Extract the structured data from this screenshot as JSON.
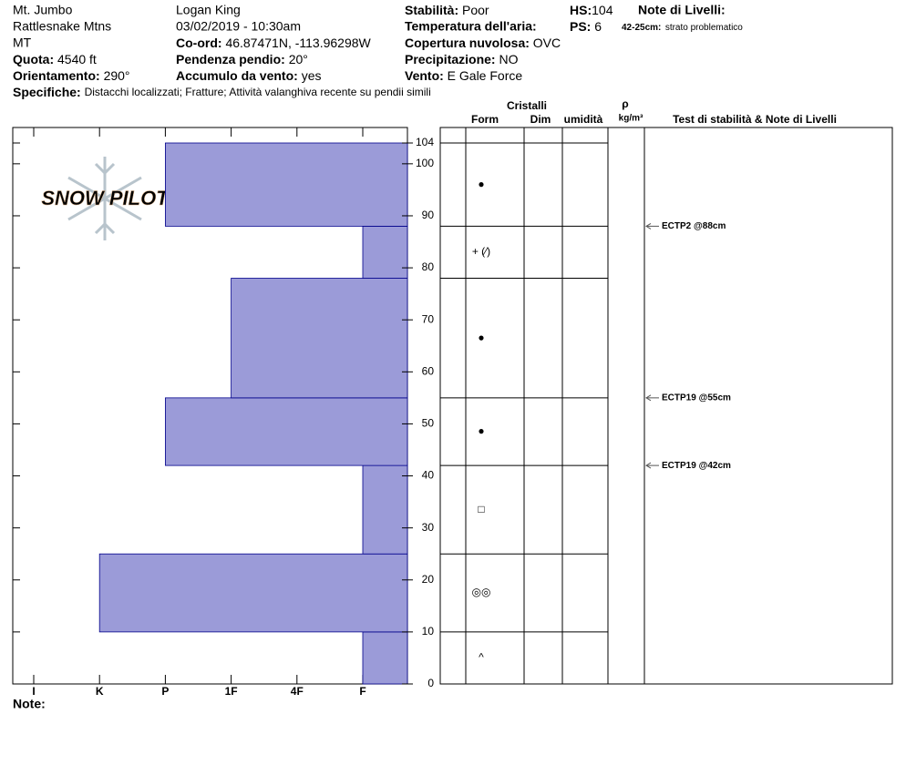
{
  "header": {
    "location": "Mt. Jumbo",
    "range": "Rattlesnake Mtns",
    "state": "MT",
    "elevation": {
      "label": "Quota:",
      "value": "4540 ft"
    },
    "aspect": {
      "label": "Orientamento:",
      "value": "290°"
    },
    "observer": "Logan King",
    "datetime": "03/02/2019 - 10:30am",
    "coord": {
      "label": "Co-ord:",
      "value": "46.87471N, -113.96298W"
    },
    "slope": {
      "label": "Pendenza pendio:",
      "value": "20°"
    },
    "wind_loading": {
      "label": "Accumulo da vento:",
      "value": "yes"
    },
    "stability": {
      "label": "Stabilità:",
      "value": "Poor"
    },
    "air_temp": {
      "label": "Temperatura dell'aria:"
    },
    "sky": {
      "label": "Copertura nuvolosa:",
      "value": "OVC"
    },
    "precip": {
      "label": "Precipitazione:",
      "value": "NO"
    },
    "wind": {
      "label": "Vento:",
      "value": "E Gale Force"
    },
    "hs": {
      "label": "HS:",
      "value": 104
    },
    "ps": {
      "label": "PS:",
      "value": 6
    },
    "layer_notes": {
      "label": "Note di Livelli:",
      "depth": "42-25cm:",
      "text": "strato problematico"
    },
    "specifics": {
      "label": "Specifiche:",
      "value": "Distacchi localizzati;  Fratture;  Attività valanghiva recente su pendii simili"
    }
  },
  "watermark": "SNOW PILOT",
  "columns": {
    "crystals": "Cristalli",
    "form": "Form",
    "dim": "Dim",
    "moisture": "umidità",
    "rho": "ρ",
    "density": "kg/m³",
    "tests": "Test di stabilità & Note di Livelli"
  },
  "notes_label": "Note:",
  "chart_data": {
    "type": "bar",
    "orientation": "horizontal",
    "categories": [
      "I",
      "K",
      "P",
      "1F",
      "4F",
      "F"
    ],
    "color": "#9b9bd8",
    "ylim": [
      0,
      104
    ],
    "yticks": [
      0,
      10,
      20,
      30,
      40,
      50,
      60,
      70,
      80,
      90,
      100,
      104
    ],
    "layers": [
      {
        "bottom": 0,
        "top": 10,
        "hardness": "F",
        "form": "^"
      },
      {
        "bottom": 10,
        "top": 25,
        "hardness": "K",
        "form": "◎◎"
      },
      {
        "bottom": 25,
        "top": 42,
        "hardness": "F",
        "form": "□"
      },
      {
        "bottom": 42,
        "top": 55,
        "hardness": "P",
        "form": "●"
      },
      {
        "bottom": 55,
        "top": 78,
        "hardness": "1F",
        "form": "●"
      },
      {
        "bottom": 78,
        "top": 88,
        "hardness": "F",
        "form": "+ (⁄)"
      },
      {
        "bottom": 88,
        "top": 104,
        "hardness": "P",
        "form": "●"
      }
    ],
    "tests": [
      {
        "depth": 88,
        "label": "ECTP2 @88cm"
      },
      {
        "depth": 55,
        "label": "ECTP19 @55cm"
      },
      {
        "depth": 42,
        "label": "ECTP19 @42cm"
      }
    ]
  }
}
